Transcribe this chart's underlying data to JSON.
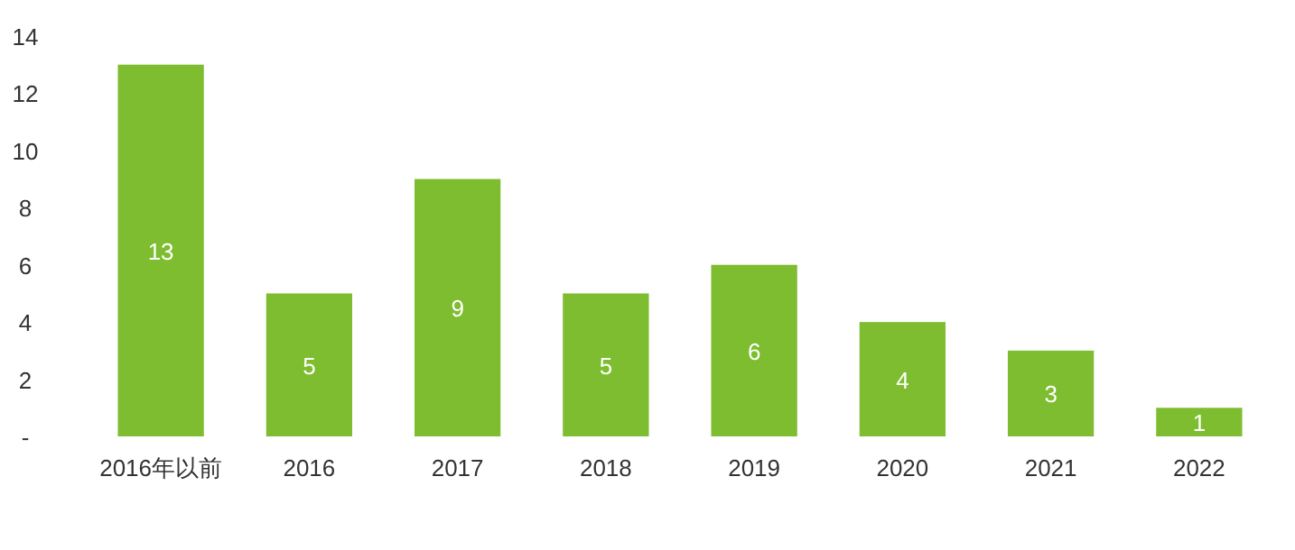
{
  "chart_data": {
    "type": "bar",
    "categories": [
      "2016年以前",
      "2016",
      "2017",
      "2018",
      "2019",
      "2020",
      "2021",
      "2022"
    ],
    "values": [
      13,
      5,
      9,
      5,
      6,
      4,
      3,
      1
    ],
    "color": "#7dbd2f",
    "ylim": [
      0,
      14
    ],
    "yticks": [
      {
        "value": 0,
        "label": "-"
      },
      2,
      4,
      6,
      8,
      10,
      12,
      14
    ],
    "data_labels": true
  }
}
